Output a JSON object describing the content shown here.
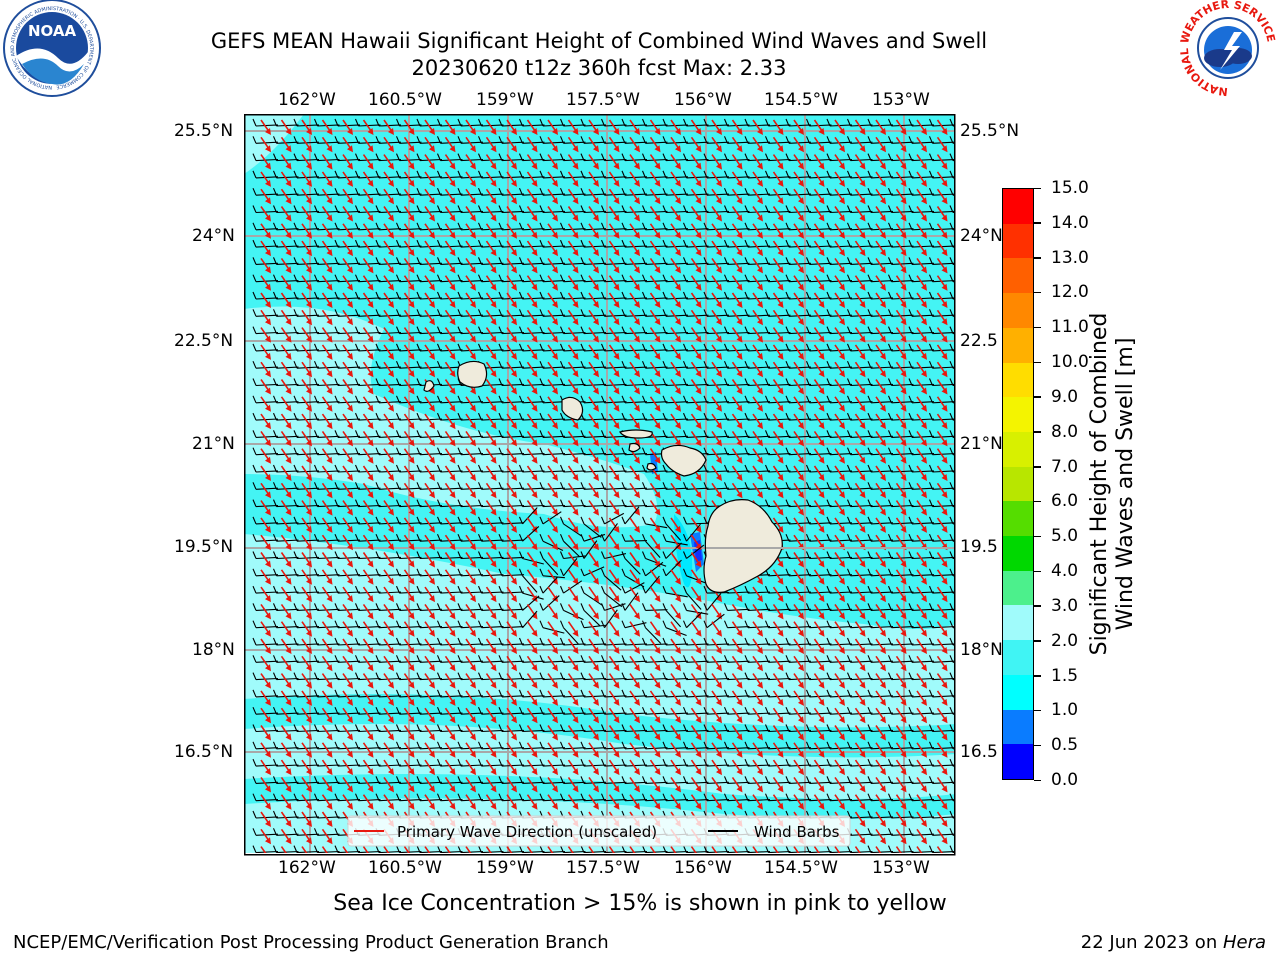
{
  "header": {
    "title_line1": "GEFS MEAN Hawaii Significant Height of Combined Wind Waves and Swell",
    "title_line2": "20230620 t12z 360h fcst   Max: 2.33"
  },
  "logos": {
    "noaa_text": "NOAA",
    "noaa_ring_text": "NATIONAL OCEANIC AND ATMOSPHERIC ADMINISTRATION · U.S. DEPARTMENT OF COMMERCE",
    "nws_ring_text": "NATIONAL WEATHER SERVICE"
  },
  "map": {
    "lon_labels": [
      "162°W",
      "160.5°W",
      "159°W",
      "157.5°W",
      "156°W",
      "154.5°W",
      "153°W"
    ],
    "lat_labels": [
      "25.5°N",
      "24°N",
      "22.5°N",
      "21°N",
      "19.5°N",
      "18°N",
      "16.5°N"
    ],
    "right_lat_labels": [
      "25.5°N",
      "24°N",
      "22.5",
      "21°N",
      "19.5",
      "18°N",
      "16.5"
    ],
    "legend": {
      "primary_wave": "Primary Wave Direction (unscaled)",
      "wind_barbs": "Wind Barbs"
    },
    "colors": {
      "primary_wave": "#e8180f",
      "wind_barb": "#000000",
      "land": "#efebdc",
      "grid": "#a8a8a8"
    }
  },
  "colorbar": {
    "label_line1": "Significant Height of Combined",
    "label_line2": "Wind Waves and Swell [m]",
    "ticks": [
      "0.0",
      "0.5",
      "1.0",
      "1.5",
      "2.0",
      "3.0",
      "4.0",
      "5.0",
      "6.0",
      "7.0",
      "8.0",
      "9.0",
      "10.0",
      "11.0",
      "12.0",
      "13.0",
      "14.0",
      "15.0"
    ],
    "colors": [
      "#0000ff",
      "#0a7cff",
      "#00ffff",
      "#40f4f4",
      "#a0fbfb",
      "#4cf08c",
      "#00d800",
      "#55dd00",
      "#b8e600",
      "#d8f000",
      "#f4f400",
      "#ffdd00",
      "#ffb000",
      "#ff8800",
      "#ff6000",
      "#ff3000",
      "#ff0000"
    ]
  },
  "notes": {
    "sea_ice": "Sea Ice Concentration > 15% is shown in pink to yellow"
  },
  "footer": {
    "left": "NCEP/EMC/Verification Post Processing Product Generation Branch",
    "right_prefix": "22 Jun 2023 on ",
    "right_italic": "Hera"
  }
}
